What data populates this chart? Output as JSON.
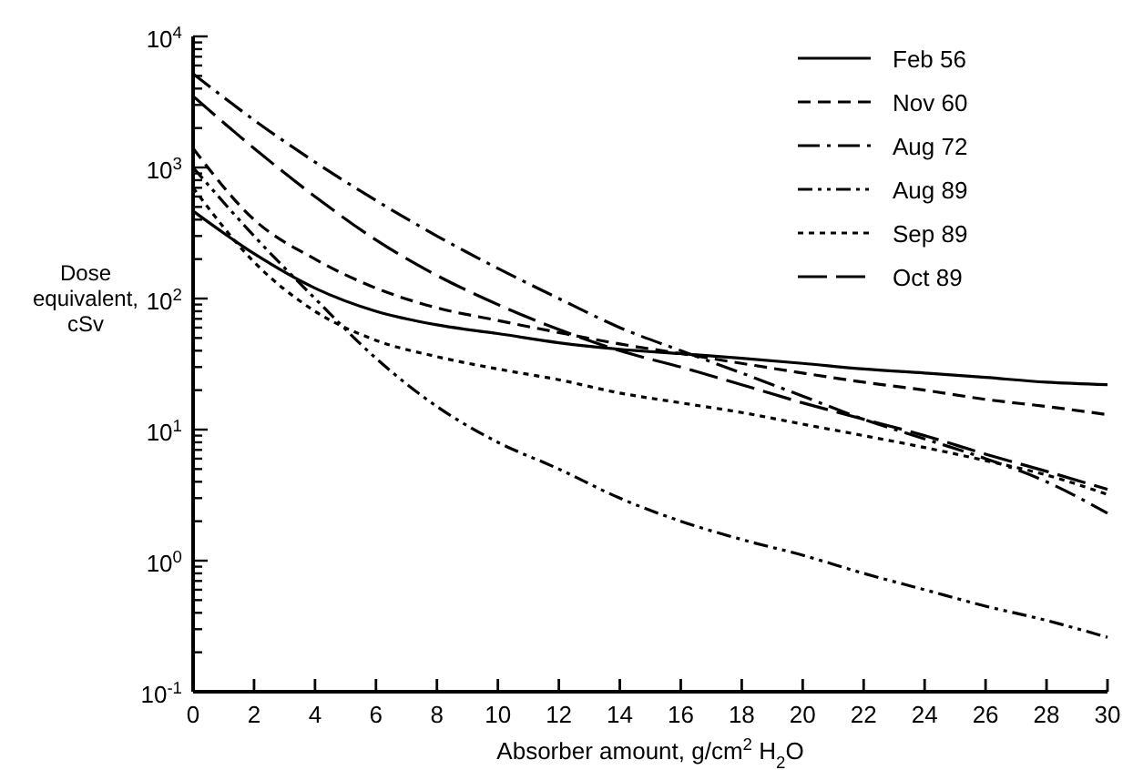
{
  "chart_data": {
    "type": "line",
    "xlabel": "Absorber amount, g/cm$^{2}$ H$_{2}$O",
    "ylabel": "Dose equivalent, cSv",
    "log": "y",
    "grid": false,
    "legend": "top right",
    "x": [
      0,
      2,
      4,
      6,
      8,
      10,
      12,
      14,
      16,
      18,
      20,
      22,
      24,
      26,
      28,
      30
    ],
    "xlim": [
      0,
      30
    ],
    "xticks": [
      0,
      2,
      4,
      6,
      8,
      10,
      12,
      14,
      16,
      18,
      20,
      22,
      24,
      26,
      28,
      30
    ],
    "ylim": [
      0.1,
      10000
    ],
    "yticks": [
      {
        "value": 0.1,
        "label": "10$^{-1}$"
      },
      {
        "value": 0.2,
        "label": null
      },
      {
        "value": 0.3,
        "label": null
      },
      {
        "value": 0.4,
        "label": null
      },
      {
        "value": 0.5,
        "label": null
      },
      {
        "value": 0.6,
        "label": null
      },
      {
        "value": 0.7,
        "label": null
      },
      {
        "value": 0.8,
        "label": null
      },
      {
        "value": 0.9,
        "label": null
      },
      {
        "value": 1,
        "label": "10$^{0}$"
      },
      {
        "value": 2,
        "label": null
      },
      {
        "value": 3,
        "label": null
      },
      {
        "value": 4,
        "label": null
      },
      {
        "value": 5,
        "label": null
      },
      {
        "value": 6,
        "label": null
      },
      {
        "value": 7,
        "label": null
      },
      {
        "value": 8,
        "label": null
      },
      {
        "value": 9,
        "label": null
      },
      {
        "value": 10,
        "label": "10$^{1}$"
      },
      {
        "value": 20,
        "label": null
      },
      {
        "value": 30,
        "label": null
      },
      {
        "value": 40,
        "label": null
      },
      {
        "value": 50,
        "label": null
      },
      {
        "value": 60,
        "label": null
      },
      {
        "value": 70,
        "label": null
      },
      {
        "value": 80,
        "label": null
      },
      {
        "value": 90,
        "label": null
      },
      {
        "value": 100,
        "label": "10$^{2}$"
      },
      {
        "value": 200,
        "label": null
      },
      {
        "value": 300,
        "label": null
      },
      {
        "value": 400,
        "label": null
      },
      {
        "value": 500,
        "label": null
      },
      {
        "value": 600,
        "label": null
      },
      {
        "value": 700,
        "label": null
      },
      {
        "value": 800,
        "label": null
      },
      {
        "value": 900,
        "label": null
      },
      {
        "value": 1000,
        "label": "10$^{3}$"
      },
      {
        "value": 2000,
        "label": null
      },
      {
        "value": 3000,
        "label": null
      },
      {
        "value": 4000,
        "label": null
      },
      {
        "value": 5000,
        "label": null
      },
      {
        "value": 6000,
        "label": null
      },
      {
        "value": 7000,
        "label": null
      },
      {
        "value": 8000,
        "label": null
      },
      {
        "value": 9000,
        "label": null
      },
      {
        "value": 10000,
        "label": "10$^{4}$"
      }
    ],
    "series": [
      {
        "name": "Feb 56",
        "color": "#000000",
        "line_style": "solid",
        "values": [
          465,
          220,
          120,
          80,
          63,
          54,
          46,
          41,
          38,
          35,
          32,
          29,
          27,
          25,
          23,
          22
        ]
      },
      {
        "name": "Nov 60",
        "color": "#000000",
        "line_style": "dashed",
        "values": [
          1400,
          400,
          200,
          120,
          85,
          68,
          55,
          45,
          38,
          32,
          27,
          23,
          20,
          17,
          15,
          13
        ]
      },
      {
        "name": "Aug 72",
        "color": "#000000",
        "line_style": "dashdot",
        "values": [
          5200,
          2300,
          1100,
          560,
          300,
          170,
          100,
          60,
          40,
          27,
          18,
          12,
          8.5,
          6,
          4,
          2.3
        ]
      },
      {
        "name": "Aug 89",
        "color": "#000000",
        "line_style": "dashdotdot",
        "values": [
          1000,
          300,
          100,
          35,
          15,
          8,
          5,
          3,
          2,
          1.45,
          1.1,
          0.8,
          0.6,
          0.45,
          0.35,
          0.26
        ]
      },
      {
        "name": "Sep 89",
        "color": "#000000",
        "line_style": "dotted",
        "values": [
          700,
          190,
          80,
          48,
          36,
          29,
          24,
          19,
          16,
          13.5,
          11,
          9,
          7.3,
          5.8,
          4.5,
          3.2
        ]
      },
      {
        "name": "Oct 89",
        "color": "#000000",
        "line_style": "longdash",
        "values": [
          3500,
          1400,
          600,
          280,
          150,
          90,
          58,
          40,
          30,
          22,
          16,
          12,
          9,
          6.5,
          4.8,
          3.5
        ]
      }
    ]
  }
}
